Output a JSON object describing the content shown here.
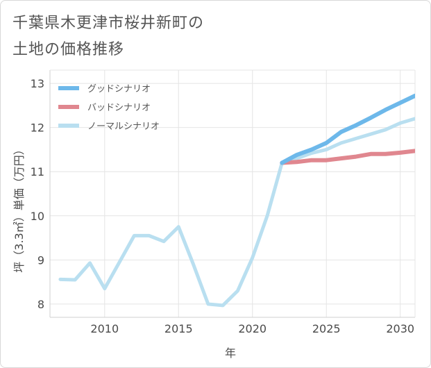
{
  "title_lines": [
    "千葉県木更津市桜井新町の",
    "土地の価格推移"
  ],
  "chart_data": {
    "type": "line",
    "xlabel": "年",
    "ylabel": "坪（3.3㎡）単価（万円）",
    "xlim": [
      2006.3,
      2031
    ],
    "ylim": [
      7.7,
      13.3
    ],
    "xticks": [
      2010,
      2015,
      2020,
      2025,
      2030
    ],
    "yticks": [
      8,
      9,
      10,
      11,
      12,
      13
    ],
    "grid": true,
    "legend_position": "top-left",
    "series": [
      {
        "name": "グッドシナリオ",
        "color": "#6db8ea",
        "x": [
          2022,
          2023,
          2024,
          2025,
          2026,
          2027,
          2028,
          2029,
          2030,
          2031
        ],
        "y": [
          11.2,
          11.38,
          11.5,
          11.65,
          11.9,
          12.05,
          12.22,
          12.4,
          12.56,
          12.72
        ]
      },
      {
        "name": "バッドシナリオ",
        "color": "#e0878f",
        "x": [
          2022,
          2023,
          2024,
          2025,
          2026,
          2027,
          2028,
          2029,
          2030,
          2031
        ],
        "y": [
          11.2,
          11.22,
          11.26,
          11.26,
          11.3,
          11.34,
          11.4,
          11.4,
          11.43,
          11.47
        ]
      },
      {
        "name": "ノーマルシナリオ",
        "color": "#b9dff0",
        "x": [
          2007,
          2008,
          2009,
          2010,
          2011,
          2012,
          2013,
          2014,
          2015,
          2016,
          2017,
          2018,
          2019,
          2020,
          2021,
          2022,
          2023,
          2024,
          2025,
          2026,
          2027,
          2028,
          2029,
          2030,
          2031
        ],
        "y": [
          8.56,
          8.55,
          8.93,
          8.35,
          8.95,
          9.55,
          9.55,
          9.42,
          9.75,
          8.9,
          8.0,
          7.97,
          8.3,
          9.05,
          10.0,
          11.2,
          11.3,
          11.42,
          11.5,
          11.65,
          11.75,
          11.85,
          11.95,
          12.1,
          12.2
        ]
      }
    ]
  }
}
